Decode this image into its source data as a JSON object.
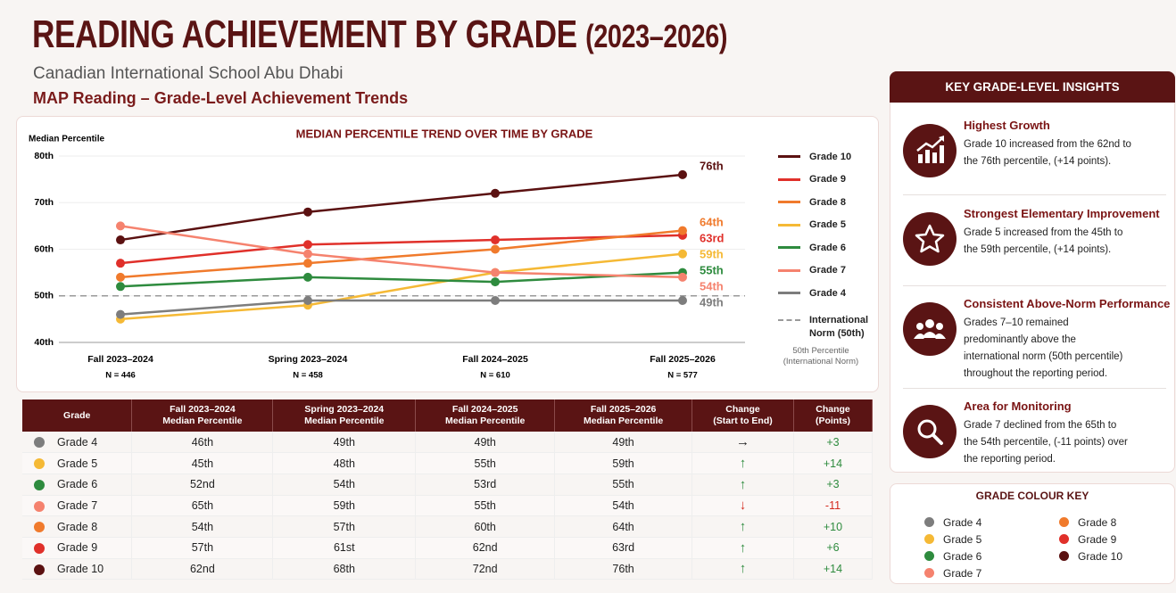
{
  "header": {
    "title": "READING ACHIEVEMENT BY GRADE",
    "title_years": "(2023–2026)",
    "school": "Canadian International School Abu Dhabi",
    "subtitle": "MAP Reading – Grade-Level Achievement Trends"
  },
  "chart_data": {
    "type": "line",
    "title": "MEDIAN PERCENTILE TREND OVER TIME BY GRADE",
    "y_label": "Median Percentile",
    "categories": [
      "Fall 2023–2024",
      "Spring 2023–2024",
      "Fall 2024–2025",
      "Fall 2025–2026"
    ],
    "category_notes": [
      "N = 446",
      "N = 458",
      "N = 610",
      "N = 577"
    ],
    "ylim": [
      40,
      80
    ],
    "yticks": [
      {
        "value": 40,
        "label": "40th"
      },
      {
        "value": 50,
        "label": "50th"
      },
      {
        "value": 60,
        "label": "60th"
      },
      {
        "value": 70,
        "label": "70th"
      },
      {
        "value": 80,
        "label": "80th"
      }
    ],
    "grid": true,
    "series": [
      {
        "name": "Grade 10",
        "color": "#5b1111",
        "values": [
          62,
          68,
          72,
          76
        ],
        "end_label": "76th"
      },
      {
        "name": "Grade 9",
        "color": "#e0302a",
        "values": [
          57,
          61,
          62,
          63
        ],
        "end_label": "63rd"
      },
      {
        "name": "Grade 8",
        "color": "#f07a2c",
        "values": [
          54,
          57,
          60,
          64
        ],
        "end_label": "64th"
      },
      {
        "name": "Grade 5",
        "color": "#f5b935",
        "values": [
          45,
          48,
          55,
          59
        ],
        "end_label": "59th"
      },
      {
        "name": "Grade 6",
        "color": "#2e8b3e",
        "values": [
          52,
          54,
          53,
          55
        ],
        "end_label": "55th"
      },
      {
        "name": "Grade 7",
        "color": "#f5826e",
        "values": [
          65,
          59,
          55,
          54
        ],
        "end_label": "54th"
      },
      {
        "name": "Grade 4",
        "color": "#7d7d7d",
        "values": [
          46,
          49,
          49,
          49
        ],
        "end_label": "49th"
      }
    ],
    "reference_line": {
      "value": 50,
      "label": "International Norm (50th)",
      "note": "50th Percentile (International Norm)",
      "color": "#9a9a9a"
    }
  },
  "table": {
    "columns": [
      [
        "Grade"
      ],
      [
        "Fall 2023–2024",
        "Median Percentile"
      ],
      [
        "Spring 2023–2024",
        "Median Percentile"
      ],
      [
        "Fall 2024–2025",
        "Median Percentile"
      ],
      [
        "Fall 2025–2026",
        "Median Percentile"
      ],
      [
        "Change",
        "(Start to End)"
      ],
      [
        "Change",
        "(Points)"
      ]
    ],
    "rows": [
      [
        "Grade 4",
        "46th",
        "49th",
        "49th",
        "49th",
        "→",
        "+3"
      ],
      [
        "Grade 5",
        "45th",
        "48th",
        "55th",
        "59th",
        "↑",
        "+14"
      ],
      [
        "Grade 6",
        "52nd",
        "54th",
        "53rd",
        "55th",
        "↑",
        "+3"
      ],
      [
        "Grade 7",
        "65th",
        "59th",
        "55th",
        "54th",
        "↓",
        "-11"
      ],
      [
        "Grade 8",
        "54th",
        "57th",
        "60th",
        "64th",
        "↑",
        "+10"
      ],
      [
        "Grade 9",
        "57th",
        "61st",
        "62nd",
        "63rd",
        "↑",
        "+6"
      ],
      [
        "Grade 10",
        "62nd",
        "68th",
        "72nd",
        "76th",
        "↑",
        "+14"
      ]
    ]
  },
  "insights": {
    "title": "KEY GRADE-LEVEL INSIGHTS",
    "items": [
      {
        "heading": "Highest Growth",
        "text": "Grade 10 increased from the 62nd to the 76th percentile, (+14 points)."
      },
      {
        "heading": "Strongest Elementary Improvement",
        "text": "Grade 5 increased from the 45th to the 59th percentile, (+14 points)."
      },
      {
        "heading": "Consistent Above-Norm Performance",
        "text": "Grades 7–10 remained predominantly above the international norm (50th percentile) throughout the reporting period."
      },
      {
        "heading": "Area for Monitoring",
        "text": "Grade 7 declined from the 65th to the 54th percentile, (-11 points) over the reporting period."
      }
    ]
  },
  "colour_key": {
    "title": "GRADE COLOUR KEY",
    "items": [
      {
        "name": "Grade 4",
        "color": "#7d7d7d"
      },
      {
        "name": "Grade 5",
        "color": "#f5b935"
      },
      {
        "name": "Grade 6",
        "color": "#2e8b3e"
      },
      {
        "name": "Grade 7",
        "color": "#f5826e"
      },
      {
        "name": "Grade 8",
        "color": "#f07a2c"
      },
      {
        "name": "Grade 9",
        "color": "#e0302a"
      },
      {
        "name": "Grade 10",
        "color": "#5b1111"
      }
    ]
  }
}
